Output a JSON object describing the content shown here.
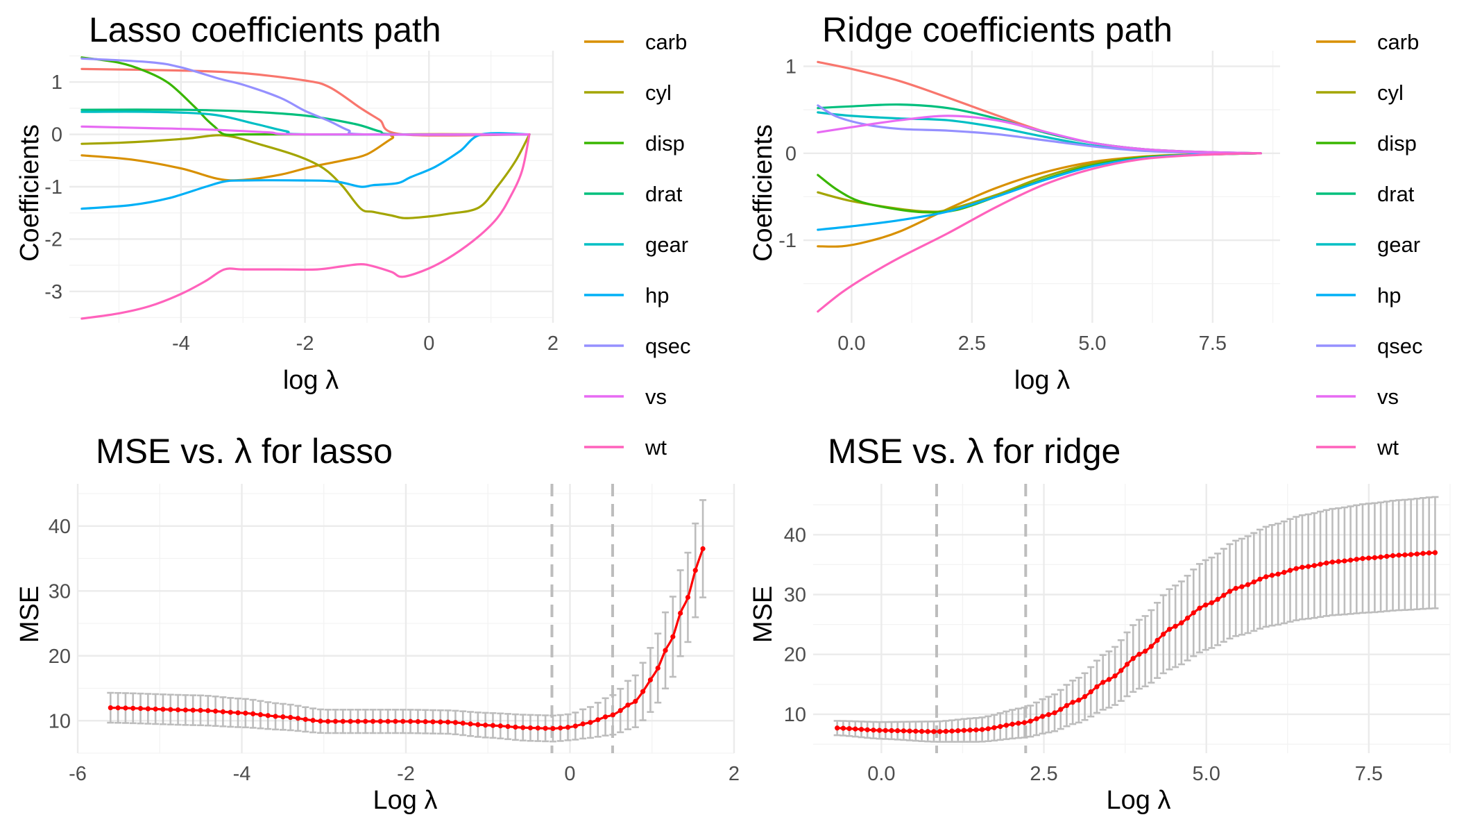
{
  "colors": {
    "carb": "#D89000",
    "cyl": "#A3A500",
    "disp": "#39B600",
    "drat": "#00BF7D",
    "gear": "#00BFC4",
    "hp": "#00B0F6",
    "qsec": "#9590FF",
    "vs": "#E76BF3",
    "wt": "#FF62BC",
    "am": "#F8766D",
    "mse_point": "#FF0000",
    "error_bar": "#BDBDBD"
  },
  "chart_data": [
    {
      "type": "line",
      "title": "Lasso coefficients path",
      "xlabel": "log λ",
      "ylabel": "Coefficients",
      "xlim": [
        -5.8,
        2.0
      ],
      "ylim": [
        -3.6,
        1.6
      ],
      "xticks": [
        -4,
        -2,
        0,
        2
      ],
      "xtick_labels": [
        "-4",
        "-2",
        "0",
        "2"
      ],
      "yticks": [
        -3,
        -2,
        -1,
        0,
        1
      ],
      "ytick_labels": [
        "-3",
        "-2",
        "-1",
        "0",
        "1"
      ],
      "grid": true,
      "legend": "right",
      "series": [
        {
          "color_key": "am",
          "x": [
            -5.6,
            -4.0,
            -3.0,
            -2.0,
            -1.6,
            -1.1,
            -0.8,
            -0.42,
            1.62
          ],
          "y": [
            1.25,
            1.22,
            1.17,
            1.03,
            0.9,
            0.5,
            0.28,
            0.0,
            0.0
          ]
        },
        {
          "name": "carb",
          "x": [
            -5.6,
            -4.8,
            -4.0,
            -3.4,
            -3.0,
            -2.4,
            -1.9,
            -1.4,
            -1.0,
            -0.6,
            -0.42,
            1.62
          ],
          "y": [
            -0.4,
            -0.48,
            -0.65,
            -0.85,
            -0.87,
            -0.77,
            -0.62,
            -0.5,
            -0.38,
            -0.08,
            0.0,
            0.0
          ]
        },
        {
          "name": "cyl",
          "x": [
            -5.6,
            -5.0,
            -4.5,
            -3.9,
            -3.3,
            -2.7,
            -2.1,
            -1.7,
            -1.4,
            -1.1,
            -0.9,
            -0.6,
            -0.4,
            -0.1,
            0.3,
            0.8,
            1.1,
            1.4,
            1.62
          ],
          "y": [
            -0.18,
            -0.16,
            -0.13,
            -0.08,
            -0.02,
            -0.2,
            -0.42,
            -0.65,
            -0.98,
            -1.42,
            -1.48,
            -1.55,
            -1.6,
            -1.58,
            -1.52,
            -1.4,
            -1.0,
            -0.5,
            0.0
          ]
        },
        {
          "name": "disp",
          "x": [
            -5.6,
            -5.0,
            -4.6,
            -4.2,
            -3.8,
            -3.6,
            -3.45,
            -3.3,
            -3.0,
            -2.5,
            1.62
          ],
          "y": [
            1.47,
            1.37,
            1.22,
            0.98,
            0.55,
            0.3,
            0.14,
            0.0,
            0.0,
            0.0,
            0.0
          ]
        },
        {
          "name": "drat",
          "x": [
            -5.6,
            -4.0,
            -3.0,
            -2.0,
            -1.2,
            -0.8,
            -0.5,
            1.62
          ],
          "y": [
            0.47,
            0.47,
            0.44,
            0.36,
            0.2,
            0.06,
            0.0,
            0.0
          ]
        },
        {
          "name": "gear",
          "x": [
            -5.6,
            -4.5,
            -3.5,
            -2.8,
            -2.3,
            -1.9,
            1.62
          ],
          "y": [
            0.43,
            0.43,
            0.38,
            0.2,
            0.06,
            0.0,
            0.0
          ]
        },
        {
          "name": "hp",
          "x": [
            -5.6,
            -4.8,
            -4.2,
            -3.6,
            -3.3,
            -3.0,
            -2.0,
            -1.5,
            -1.1,
            -0.9,
            -0.5,
            -0.3,
            0.1,
            0.5,
            0.85,
            1.62
          ],
          "y": [
            -1.42,
            -1.35,
            -1.22,
            -1.0,
            -0.9,
            -0.88,
            -0.88,
            -0.9,
            -1.0,
            -0.97,
            -0.93,
            -0.82,
            -0.62,
            -0.32,
            0.0,
            0.0
          ]
        },
        {
          "name": "qsec",
          "x": [
            -5.6,
            -4.5,
            -4.0,
            -3.4,
            -3.0,
            -2.4,
            -2.0,
            -1.6,
            -1.3,
            -1.0,
            1.62
          ],
          "y": [
            1.45,
            1.38,
            1.28,
            1.07,
            0.95,
            0.7,
            0.45,
            0.25,
            0.08,
            0.0,
            0.0
          ]
        },
        {
          "name": "vs",
          "x": [
            -5.6,
            -4.5,
            -3.5,
            -2.6,
            -2.0,
            1.62
          ],
          "y": [
            0.15,
            0.12,
            0.09,
            0.04,
            0.0,
            0.0
          ]
        },
        {
          "name": "wt",
          "x": [
            -5.6,
            -5.0,
            -4.5,
            -4.0,
            -3.6,
            -3.3,
            -3.0,
            -2.4,
            -1.8,
            -1.4,
            -1.1,
            -0.9,
            -0.6,
            -0.42,
            0.0,
            0.4,
            0.8,
            1.1,
            1.3,
            1.5,
            1.62
          ],
          "y": [
            -3.52,
            -3.42,
            -3.28,
            -3.05,
            -2.8,
            -2.58,
            -2.58,
            -2.58,
            -2.58,
            -2.52,
            -2.48,
            -2.52,
            -2.63,
            -2.72,
            -2.56,
            -2.3,
            -1.95,
            -1.6,
            -1.22,
            -0.7,
            0.0
          ]
        }
      ]
    },
    {
      "type": "line",
      "title": "Ridge coefficients path",
      "xlabel": "log λ",
      "ylabel": "Coefficients",
      "xlim": [
        -1.0,
        8.9
      ],
      "ylim": [
        -1.95,
        1.18
      ],
      "xticks": [
        0.0,
        2.5,
        5.0,
        7.5
      ],
      "xtick_labels": [
        "0.0",
        "2.5",
        "5.0",
        "7.5"
      ],
      "yticks": [
        -1,
        0,
        1
      ],
      "ytick_labels": [
        "-1",
        "0",
        "1"
      ],
      "grid": true,
      "legend": "right",
      "series": [
        {
          "color_key": "am",
          "x": [
            -0.7,
            0.0,
            1.0,
            2.0,
            3.0,
            4.0,
            5.0,
            6.0,
            7.0,
            8.0,
            8.5
          ],
          "y": [
            1.05,
            0.97,
            0.83,
            0.64,
            0.44,
            0.25,
            0.12,
            0.05,
            0.02,
            0.005,
            0.0
          ]
        },
        {
          "name": "carb",
          "x": [
            -0.7,
            -0.2,
            0.3,
            1.0,
            2.0,
            3.0,
            4.0,
            5.0,
            6.0,
            7.0,
            8.5
          ],
          "y": [
            -1.07,
            -1.07,
            -1.02,
            -0.9,
            -0.64,
            -0.4,
            -0.22,
            -0.1,
            -0.04,
            -0.015,
            0.0
          ]
        },
        {
          "name": "cyl",
          "x": [
            -0.7,
            0.0,
            1.0,
            1.6,
            2.0,
            3.0,
            4.0,
            5.0,
            6.0,
            7.0,
            8.5
          ],
          "y": [
            -0.45,
            -0.55,
            -0.64,
            -0.67,
            -0.65,
            -0.48,
            -0.27,
            -0.12,
            -0.05,
            -0.02,
            0.0
          ]
        },
        {
          "name": "disp",
          "x": [
            -0.7,
            -0.3,
            0.2,
            1.0,
            1.6,
            2.2,
            3.0,
            4.0,
            5.0,
            6.0,
            7.0,
            8.5
          ],
          "y": [
            -0.25,
            -0.42,
            -0.56,
            -0.65,
            -0.68,
            -0.65,
            -0.5,
            -0.3,
            -0.14,
            -0.05,
            -0.02,
            0.0
          ]
        },
        {
          "name": "drat",
          "x": [
            -0.7,
            0.0,
            1.0,
            2.0,
            3.0,
            4.0,
            5.0,
            6.0,
            7.0,
            8.5
          ],
          "y": [
            0.52,
            0.54,
            0.56,
            0.52,
            0.4,
            0.24,
            0.12,
            0.05,
            0.02,
            0.0
          ]
        },
        {
          "name": "gear",
          "x": [
            -0.7,
            0.0,
            1.0,
            2.0,
            3.0,
            4.0,
            5.0,
            6.0,
            7.0,
            8.5
          ],
          "y": [
            0.47,
            0.43,
            0.4,
            0.38,
            0.3,
            0.19,
            0.09,
            0.035,
            0.01,
            0.0
          ]
        },
        {
          "name": "hp",
          "x": [
            -0.7,
            0.0,
            1.0,
            2.0,
            3.0,
            4.0,
            5.0,
            6.0,
            7.0,
            8.5
          ],
          "y": [
            -0.88,
            -0.84,
            -0.77,
            -0.67,
            -0.5,
            -0.31,
            -0.15,
            -0.06,
            -0.02,
            0.0
          ]
        },
        {
          "name": "qsec",
          "x": [
            -0.7,
            -0.3,
            0.3,
            1.0,
            2.0,
            3.0,
            4.0,
            5.0,
            6.0,
            7.0,
            8.5
          ],
          "y": [
            0.55,
            0.42,
            0.33,
            0.28,
            0.26,
            0.22,
            0.15,
            0.08,
            0.03,
            0.01,
            0.0
          ]
        },
        {
          "name": "vs",
          "x": [
            -0.7,
            0.0,
            1.0,
            2.0,
            3.0,
            4.0,
            5.0,
            6.0,
            7.0,
            8.5
          ],
          "y": [
            0.24,
            0.3,
            0.38,
            0.43,
            0.38,
            0.25,
            0.12,
            0.05,
            0.02,
            0.0
          ]
        },
        {
          "name": "wt",
          "x": [
            -0.7,
            -0.2,
            0.3,
            1.0,
            2.0,
            3.0,
            4.0,
            5.0,
            6.0,
            7.0,
            8.0,
            8.5
          ],
          "y": [
            -1.82,
            -1.6,
            -1.42,
            -1.2,
            -0.92,
            -0.62,
            -0.36,
            -0.18,
            -0.07,
            -0.025,
            -0.005,
            0.0
          ]
        }
      ]
    },
    {
      "type": "line",
      "title": "MSE vs. λ for lasso",
      "xlabel": "Log λ",
      "ylabel": "MSE",
      "xlim": [
        -6.0,
        2.0
      ],
      "ylim": [
        5.0,
        46.5
      ],
      "xticks": [
        -6,
        -4,
        -2,
        0,
        2
      ],
      "xtick_labels": [
        "-6",
        "-4",
        "-2",
        "0",
        "2"
      ],
      "yticks": [
        10,
        20,
        30,
        40
      ],
      "ytick_labels": [
        "10",
        "20",
        "30",
        "40"
      ],
      "grid": true,
      "x_range": [
        -5.6,
        1.62
      ],
      "n_points": 80,
      "vlines": [
        -0.22,
        0.52
      ],
      "x": [
        -5.6,
        -4.5,
        -4.0,
        -3.5,
        -3.0,
        -2.5,
        -2.0,
        -1.5,
        -1.0,
        -0.5,
        -0.2,
        0.0,
        0.2,
        0.5,
        0.8,
        1.0,
        1.2,
        1.4,
        1.62
      ],
      "y": [
        12.0,
        11.6,
        11.2,
        10.6,
        9.9,
        9.9,
        9.9,
        9.8,
        9.3,
        8.9,
        8.8,
        9.0,
        9.6,
        10.8,
        13.0,
        16.5,
        21.5,
        28.0,
        36.5
      ],
      "se": [
        2.3,
        2.3,
        2.2,
        2.0,
        1.8,
        1.8,
        1.8,
        1.8,
        1.9,
        2.0,
        2.0,
        2.0,
        2.3,
        3.0,
        4.0,
        5.0,
        6.0,
        6.8,
        7.5
      ]
    },
    {
      "type": "line",
      "title": "MSE vs. λ for ridge",
      "xlabel": "Log λ",
      "ylabel": "MSE",
      "xlim": [
        -1.05,
        8.75
      ],
      "ylim": [
        3.5,
        48.5
      ],
      "xticks": [
        0.0,
        2.5,
        5.0,
        7.5
      ],
      "xtick_labels": [
        "0.0",
        "2.5",
        "5.0",
        "7.5"
      ],
      "yticks": [
        10,
        20,
        30,
        40
      ],
      "ytick_labels": [
        "10",
        "20",
        "30",
        "40"
      ],
      "grid": true,
      "x_range": [
        -0.68,
        8.52
      ],
      "n_points": 100,
      "vlines": [
        0.85,
        2.22
      ],
      "x": [
        -0.68,
        0.0,
        0.85,
        1.5,
        2.2,
        2.6,
        3.0,
        3.5,
        4.0,
        4.5,
        5.0,
        5.5,
        6.0,
        6.5,
        7.0,
        7.5,
        8.0,
        8.52
      ],
      "y": [
        7.7,
        7.3,
        7.1,
        7.4,
        8.6,
        10.0,
        12.2,
        15.8,
        20.2,
        24.6,
        28.3,
        31.2,
        33.2,
        34.6,
        35.5,
        36.1,
        36.6,
        37.0
      ],
      "se": [
        1.2,
        1.4,
        1.7,
        2.0,
        2.5,
        3.0,
        3.7,
        4.7,
        5.8,
        6.8,
        7.5,
        8.0,
        8.4,
        8.7,
        8.9,
        9.1,
        9.2,
        9.3
      ]
    }
  ],
  "legend_items": [
    {
      "name": "carb"
    },
    {
      "name": "cyl"
    },
    {
      "name": "disp"
    },
    {
      "name": "drat"
    },
    {
      "name": "gear"
    },
    {
      "name": "hp"
    },
    {
      "name": "qsec"
    },
    {
      "name": "vs"
    },
    {
      "name": "wt"
    }
  ]
}
